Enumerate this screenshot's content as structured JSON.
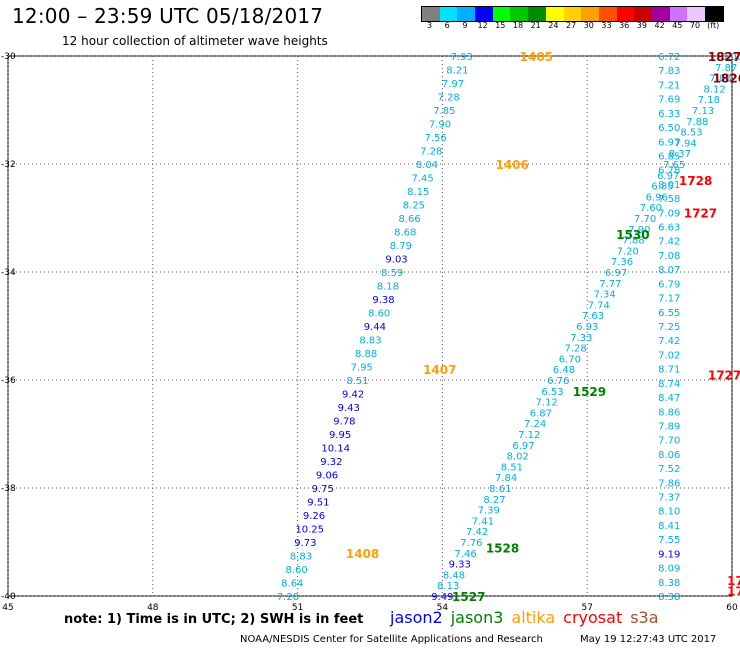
{
  "header": {
    "title": "12:00 – 23:59 UTC 05/18/2017",
    "subtitle": "12 hour collection of altimeter wave heights"
  },
  "legend": {
    "unit": "(ft)",
    "bins": [
      {
        "label": "3",
        "color": "#808080"
      },
      {
        "label": "6",
        "color": "#00e0ff"
      },
      {
        "label": "9",
        "color": "#00b0ff"
      },
      {
        "label": "12",
        "color": "#0000ff"
      },
      {
        "label": "15",
        "color": "#00ff00"
      },
      {
        "label": "18",
        "color": "#00c800"
      },
      {
        "label": "21",
        "color": "#008c00"
      },
      {
        "label": "24",
        "color": "#ffff00"
      },
      {
        "label": "27",
        "color": "#ffd200"
      },
      {
        "label": "30",
        "color": "#ffa000"
      },
      {
        "label": "33",
        "color": "#ff5000"
      },
      {
        "label": "36",
        "color": "#ff0000"
      },
      {
        "label": "39",
        "color": "#c80000"
      },
      {
        "label": "42",
        "color": "#a000a0"
      },
      {
        "label": "45",
        "color": "#d070ff"
      },
      {
        "label": "70",
        "color": "#e8c8ff"
      },
      {
        "label": "",
        "color": "#000000"
      }
    ]
  },
  "axes": {
    "lat_ticks": [
      "-30",
      "-32",
      "-34",
      "-36",
      "-38",
      "-40"
    ],
    "lon_ticks": [
      "45",
      "48",
      "51",
      "54",
      "57",
      "60"
    ]
  },
  "tracks": [
    {
      "satellite": "altika",
      "color": "#00b0e0",
      "lat_start": -30.0,
      "lon_start": 54.4,
      "lat_end": -40.0,
      "lon_end": 50.8,
      "values": [
        "7.93",
        "8.21",
        "7.97",
        "7.28",
        "7.85",
        "7.90",
        "7.56",
        "7.28",
        "8.04",
        "7.45",
        "8.15",
        "8.25",
        "8.66",
        "8.68",
        "8.79",
        "9.03",
        "8.59",
        "8.18",
        "9.38",
        "8.60",
        "9.44",
        "8.83",
        "8.88",
        "7.95",
        "8.51",
        "9.42",
        "9.43",
        "9.78",
        "9.95",
        "10.14",
        "9.32",
        "9.06",
        "9.75",
        "9.51",
        "9.26",
        "10.25",
        "9.73",
        "8.83",
        "8.60",
        "8.64",
        "7.20"
      ]
    },
    {
      "satellite": "jason3",
      "color": "#00b0e0",
      "lat_start": -30.0,
      "lon_start": 60.0,
      "lat_end": -40.0,
      "lon_end": 54.0,
      "values": [
        "8.00",
        "7.87",
        "7.88",
        "8.12",
        "7.18",
        "7.13",
        "7.88",
        "8.53",
        "7.94",
        "8.37",
        "7.65",
        "6.97",
        "6.85",
        "6.96",
        "7.60",
        "7.70",
        "7.90",
        "7.88",
        "7.20",
        "7.36",
        "6.97",
        "7.77",
        "7.34",
        "7.74",
        "7.63",
        "6.93",
        "7.33",
        "7.28",
        "6.70",
        "6.48",
        "6.76",
        "6.53",
        "7.12",
        "6.87",
        "7.24",
        "7.12",
        "6.97",
        "8.02",
        "8.51",
        "7.84",
        "8.61",
        "8.27",
        "7.39",
        "7.41",
        "7.42",
        "7.76",
        "7.46",
        "9.33",
        "8.48",
        "8.13",
        "9.49"
      ]
    },
    {
      "satellite": "jason3",
      "color": "#00b0e0",
      "lat_start": -30.0,
      "lon_start": 58.7,
      "lat_end": -40.0,
      "lon_end": 58.7,
      "values": [
        "6.72",
        "7.83",
        "7.21",
        "7.69",
        "6.33",
        "6.50",
        "6.97",
        "6.85",
        "6.78",
        "8.01",
        "7.58",
        "7.09",
        "6.63",
        "7.42",
        "7.08",
        "8.07",
        "6.79",
        "7.17",
        "6.55",
        "7.25",
        "7.42",
        "7.02",
        "8.71",
        "8.74",
        "8.47",
        "8.86",
        "7.89",
        "7.70",
        "8.06",
        "7.52",
        "7.86",
        "7.37",
        "8.10",
        "8.41",
        "7.55",
        "9.19",
        "8.09",
        "8.38",
        "8.38"
      ]
    }
  ],
  "pass_labels": [
    {
      "text": "1405",
      "color": "#ffa000",
      "lat": -30.0,
      "lon": 55.6
    },
    {
      "text": "1406",
      "color": "#ffa000",
      "lat": -32.0,
      "lon": 55.1
    },
    {
      "text": "1407",
      "color": "#ffa000",
      "lat": -35.8,
      "lon": 53.6
    },
    {
      "text": "1408",
      "color": "#ffa000",
      "lat": -39.2,
      "lon": 52.0
    },
    {
      "text": "1827",
      "color": "#8b0000",
      "lat": -30.0,
      "lon": 59.5
    },
    {
      "text": "1826",
      "color": "#8b0000",
      "lat": -30.4,
      "lon": 59.6
    },
    {
      "text": "15",
      "color": "#008000",
      "lat": -30.6,
      "lon": 60.4
    },
    {
      "text": "1728",
      "color": "#ff0000",
      "lat": -32.3,
      "lon": 58.9
    },
    {
      "text": "1727",
      "color": "#ff0000",
      "lat": -32.9,
      "lon": 59.0
    },
    {
      "text": "1530",
      "color": "#008000",
      "lat": -33.3,
      "lon": 57.6
    },
    {
      "text": "1529",
      "color": "#008000",
      "lat": -36.2,
      "lon": 56.7
    },
    {
      "text": "1727",
      "color": "#ff0000",
      "lat": -35.9,
      "lon": 59.5
    },
    {
      "text": "1528",
      "color": "#008000",
      "lat": -39.1,
      "lon": 54.9
    },
    {
      "text": "1527",
      "color": "#008000",
      "lat": -40.0,
      "lon": 54.2
    },
    {
      "text": "17",
      "color": "#ff0000",
      "lat": -39.7,
      "lon": 59.9
    },
    {
      "text": "17",
      "color": "#ff0000",
      "lat": -39.9,
      "lon": 59.9
    }
  ],
  "note": "note: 1) Time is in UTC; 2) SWH is in feet",
  "satellites": [
    {
      "name": "jason2",
      "color": "#0000ff"
    },
    {
      "name": "jason3",
      "color": "#008000"
    },
    {
      "name": "altika",
      "color": "#ffa000"
    },
    {
      "name": "cryosat",
      "color": "#ff0000"
    },
    {
      "name": "s3a",
      "color": "#a0522d"
    }
  ],
  "footer": {
    "credit": "NOAA/NESDIS Center for Satellite Applications and Research",
    "timestamp": "May 19 12:27:43 UTC 2017"
  }
}
